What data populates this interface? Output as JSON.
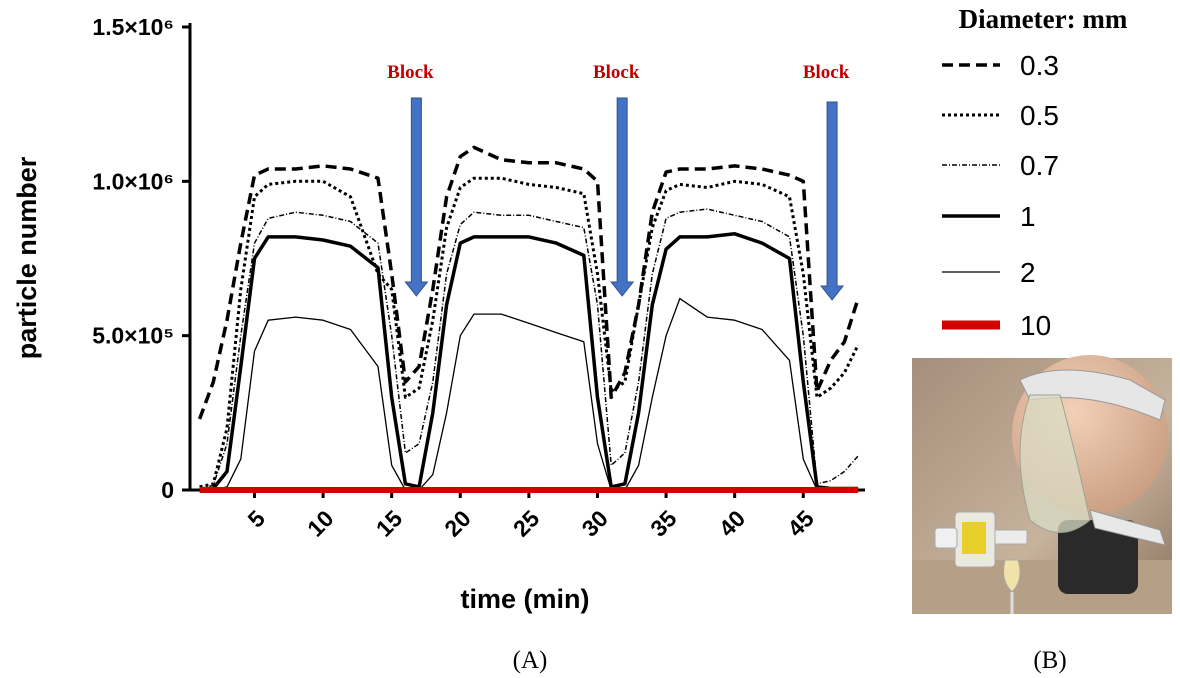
{
  "chart_data": {
    "type": "line",
    "xlabel": "time (min)",
    "ylabel": "particle number",
    "legend_title": "Diameter: mm",
    "legend": "right",
    "x": [
      1,
      2,
      3,
      4,
      5,
      6,
      8,
      10,
      12,
      14,
      15,
      16,
      17,
      18,
      19,
      20,
      21,
      23,
      25,
      27,
      29,
      30,
      31,
      32,
      33,
      34,
      35,
      36,
      38,
      40,
      42,
      44,
      45,
      46,
      47,
      48,
      49
    ],
    "xlim": [
      0.3,
      49.5
    ],
    "xticks": [
      5,
      10,
      15,
      20,
      25,
      30,
      35,
      40,
      45
    ],
    "ylim": [
      0,
      1500000
    ],
    "yticks": [
      {
        "value": 0,
        "label": "0"
      },
      {
        "value": 500000,
        "label": "5.0×10⁵"
      },
      {
        "value": 1000000,
        "label": "1.0×10⁶"
      },
      {
        "value": 1500000,
        "label": "1.5×10⁶"
      }
    ],
    "series": [
      {
        "name": "0.3",
        "color": "#000000",
        "style": "dashed",
        "linewidth": 3.5,
        "values": [
          230000,
          350000,
          550000,
          800000,
          1020000,
          1040000,
          1040000,
          1050000,
          1040000,
          1010000,
          700000,
          350000,
          400000,
          650000,
          950000,
          1080000,
          1110000,
          1070000,
          1060000,
          1060000,
          1040000,
          1000000,
          300000,
          380000,
          600000,
          900000,
          1030000,
          1040000,
          1040000,
          1050000,
          1040000,
          1020000,
          1000000,
          320000,
          420000,
          480000,
          620000
        ]
      },
      {
        "name": "0.5",
        "color": "#000000",
        "style": "dotted",
        "linewidth": 3,
        "values": [
          10000,
          20000,
          200000,
          650000,
          950000,
          990000,
          1000000,
          1000000,
          950000,
          700000,
          650000,
          300000,
          330000,
          550000,
          850000,
          980000,
          1010000,
          1010000,
          990000,
          980000,
          960000,
          700000,
          320000,
          350000,
          600000,
          850000,
          970000,
          990000,
          980000,
          1000000,
          990000,
          950000,
          700000,
          300000,
          330000,
          380000,
          470000
        ]
      },
      {
        "name": "0.7",
        "color": "#000000",
        "style": "dash-dot",
        "linewidth": 1.5,
        "values": [
          5000,
          15000,
          150000,
          500000,
          800000,
          880000,
          900000,
          890000,
          870000,
          800000,
          500000,
          120000,
          150000,
          350000,
          700000,
          860000,
          900000,
          890000,
          890000,
          870000,
          850000,
          600000,
          80000,
          120000,
          350000,
          700000,
          880000,
          900000,
          910000,
          890000,
          870000,
          820000,
          500000,
          20000,
          30000,
          60000,
          110000
        ]
      },
      {
        "name": "1",
        "color": "#000000",
        "style": "solid",
        "linewidth": 3.5,
        "values": [
          0,
          5000,
          60000,
          400000,
          750000,
          820000,
          820000,
          810000,
          790000,
          720000,
          300000,
          20000,
          10000,
          250000,
          600000,
          800000,
          820000,
          820000,
          820000,
          800000,
          760000,
          300000,
          10000,
          20000,
          250000,
          600000,
          780000,
          820000,
          820000,
          830000,
          800000,
          750000,
          350000,
          10000,
          5000,
          5000,
          5000
        ]
      },
      {
        "name": "2",
        "color": "#000000",
        "style": "solid",
        "linewidth": 1.3,
        "values": [
          0,
          0,
          10000,
          100000,
          450000,
          550000,
          560000,
          550000,
          520000,
          400000,
          80000,
          0,
          0,
          50000,
          250000,
          500000,
          570000,
          570000,
          540000,
          510000,
          480000,
          150000,
          0,
          0,
          80000,
          300000,
          500000,
          620000,
          560000,
          550000,
          520000,
          420000,
          100000,
          0,
          0,
          0,
          0
        ]
      },
      {
        "name": "10",
        "color": "#d40000",
        "style": "solid",
        "linewidth": 6,
        "values": [
          0,
          0,
          0,
          0,
          0,
          0,
          0,
          0,
          0,
          0,
          0,
          0,
          0,
          0,
          0,
          0,
          0,
          0,
          0,
          0,
          0,
          0,
          0,
          0,
          0,
          0,
          0,
          0,
          0,
          0,
          0,
          0,
          0,
          0,
          0,
          0,
          0
        ]
      }
    ],
    "annotations": [
      {
        "text": "Block",
        "x": 16.8
      },
      {
        "text": "Block",
        "x": 31.8
      },
      {
        "text": "Block",
        "x": 47.1
      }
    ],
    "panel_labels": [
      "(A)",
      "(B)"
    ]
  }
}
